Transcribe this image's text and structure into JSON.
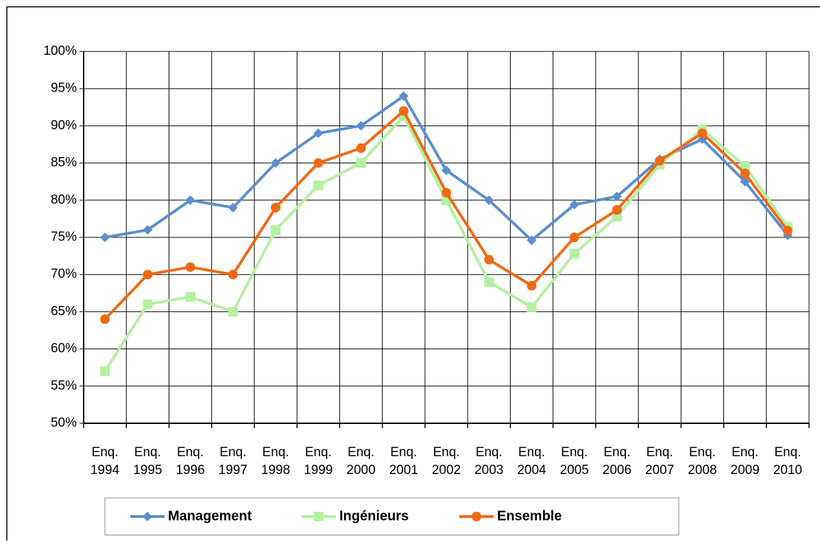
{
  "chart_data": {
    "type": "line",
    "categories": [
      "Enq. 1994",
      "Enq. 1995",
      "Enq. 1996",
      "Enq. 1997",
      "Enq. 1998",
      "Enq. 1999",
      "Enq. 2000",
      "Enq. 2001",
      "Enq. 2002",
      "Enq. 2003",
      "Enq. 2004",
      "Enq. 2005",
      "Enq. 2006",
      "Enq. 2007",
      "Enq. 2008",
      "Enq. 2009",
      "Enq. 2010"
    ],
    "series": [
      {
        "name": "Management",
        "color": "#5b8ed0",
        "marker": "diamond",
        "values": [
          75,
          76,
          80,
          79,
          85,
          89,
          90,
          94,
          84,
          80,
          74.6,
          79.4,
          80.5,
          85.5,
          88.2,
          82.5,
          75.3
        ]
      },
      {
        "name": "Ingénieurs",
        "color": "#b4f0a0",
        "marker": "square",
        "values": [
          57,
          66,
          67,
          65,
          76,
          82,
          85,
          91.3,
          80,
          69,
          65.6,
          72.8,
          77.8,
          84.8,
          89.5,
          84.6,
          76.4
        ]
      },
      {
        "name": "Ensemble",
        "color": "#f06a14",
        "marker": "circle",
        "values": [
          64,
          70,
          71,
          70,
          79,
          85,
          87,
          92,
          81,
          72,
          68.5,
          75,
          78.7,
          85.3,
          89,
          83.6,
          75.9
        ]
      }
    ],
    "ylim": [
      50,
      100
    ],
    "yticks": [
      {
        "value": 50,
        "label": "50%"
      },
      {
        "value": 55,
        "label": "55%"
      },
      {
        "value": 60,
        "label": "60%"
      },
      {
        "value": 65,
        "label": "65%"
      },
      {
        "value": 70,
        "label": "70%"
      },
      {
        "value": 75,
        "label": "75%"
      },
      {
        "value": 80,
        "label": "80%"
      },
      {
        "value": 85,
        "label": "85%"
      },
      {
        "value": 90,
        "label": "90%"
      },
      {
        "value": 95,
        "label": "95%"
      },
      {
        "value": 100,
        "label": "100%"
      }
    ],
    "grid": true,
    "legend": "bottom"
  }
}
